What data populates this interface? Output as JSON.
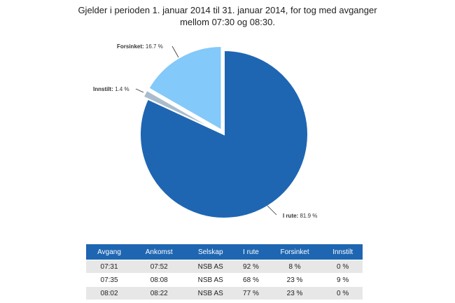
{
  "subtitle": {
    "line1": "Gjelder i perioden 1. januar 2014 til 31. januar 2014, for tog med avganger",
    "line2": "mellom 07:30 og 08:30."
  },
  "chart_data": {
    "type": "pie",
    "title": "Gjelder i perioden 1. januar 2014 til 31. januar 2014, for tog med avganger mellom 07:30 og 08:30.",
    "slices": [
      {
        "name": "I rute",
        "value": 81.9,
        "label": "81.9 %",
        "color": "#1f66b2",
        "exploded": false
      },
      {
        "name": "Innstilt",
        "value": 1.4,
        "label": "1.4 %",
        "color": "#a9bccd",
        "exploded": true
      },
      {
        "name": "Forsinket",
        "value": 16.7,
        "label": "16.7 %",
        "color": "#83c9f9",
        "exploded": true
      }
    ]
  },
  "table": {
    "headers": [
      "Avgang",
      "Ankomst",
      "Selskap",
      "I rute",
      "Forsinket",
      "Innstilt"
    ],
    "rows": [
      [
        "07:31",
        "07:52",
        "NSB AS",
        "92 %",
        "8 %",
        "0 %"
      ],
      [
        "07:35",
        "08:08",
        "NSB AS",
        "68 %",
        "23 %",
        "9 %"
      ],
      [
        "08:02",
        "08:22",
        "NSB AS",
        "77 %",
        "23 %",
        "0 %"
      ]
    ]
  },
  "colors": {
    "header_bg": "#1f66b2",
    "row_alt_bg": "#e7e7e7"
  }
}
